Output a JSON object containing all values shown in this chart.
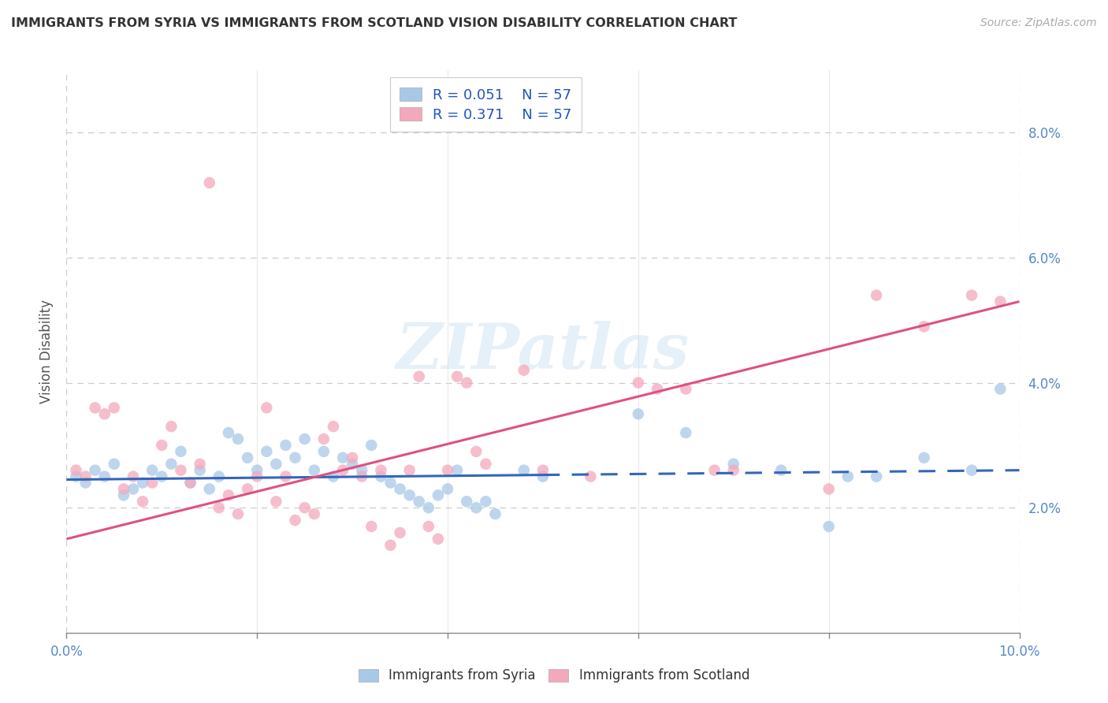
{
  "title": "IMMIGRANTS FROM SYRIA VS IMMIGRANTS FROM SCOTLAND VISION DISABILITY CORRELATION CHART",
  "source": "Source: ZipAtlas.com",
  "ylabel": "Vision Disability",
  "xlim": [
    0.0,
    0.1
  ],
  "ylim": [
    0.0,
    0.09
  ],
  "yticks": [
    0.02,
    0.04,
    0.06,
    0.08
  ],
  "xtick_labels_shown": [
    0.0,
    0.1
  ],
  "xtick_minor": [
    0.02,
    0.04,
    0.06,
    0.08
  ],
  "legend_labels": [
    "Immigrants from Syria",
    "Immigrants from Scotland"
  ],
  "r_syria": 0.051,
  "r_scotland": 0.371,
  "n_syria": 57,
  "n_scotland": 57,
  "color_syria": "#a8c8e8",
  "color_scotland": "#f4a8bc",
  "line_color_syria": "#3366bb",
  "line_color_scotland": "#e05080",
  "syria_line_solid_end": 0.05,
  "syria_intercept": 0.0245,
  "syria_slope": 0.015,
  "scotland_intercept": 0.015,
  "scotland_slope": 0.38,
  "syria_points": [
    [
      0.001,
      0.025
    ],
    [
      0.002,
      0.024
    ],
    [
      0.003,
      0.026
    ],
    [
      0.004,
      0.025
    ],
    [
      0.005,
      0.027
    ],
    [
      0.006,
      0.022
    ],
    [
      0.007,
      0.023
    ],
    [
      0.008,
      0.024
    ],
    [
      0.009,
      0.026
    ],
    [
      0.01,
      0.025
    ],
    [
      0.011,
      0.027
    ],
    [
      0.012,
      0.029
    ],
    [
      0.013,
      0.024
    ],
    [
      0.014,
      0.026
    ],
    [
      0.015,
      0.023
    ],
    [
      0.016,
      0.025
    ],
    [
      0.017,
      0.032
    ],
    [
      0.018,
      0.031
    ],
    [
      0.019,
      0.028
    ],
    [
      0.02,
      0.026
    ],
    [
      0.021,
      0.029
    ],
    [
      0.022,
      0.027
    ],
    [
      0.023,
      0.03
    ],
    [
      0.024,
      0.028
    ],
    [
      0.025,
      0.031
    ],
    [
      0.026,
      0.026
    ],
    [
      0.027,
      0.029
    ],
    [
      0.028,
      0.025
    ],
    [
      0.029,
      0.028
    ],
    [
      0.03,
      0.027
    ],
    [
      0.031,
      0.026
    ],
    [
      0.032,
      0.03
    ],
    [
      0.033,
      0.025
    ],
    [
      0.034,
      0.024
    ],
    [
      0.035,
      0.023
    ],
    [
      0.036,
      0.022
    ],
    [
      0.037,
      0.021
    ],
    [
      0.038,
      0.02
    ],
    [
      0.039,
      0.022
    ],
    [
      0.04,
      0.023
    ],
    [
      0.041,
      0.026
    ],
    [
      0.042,
      0.021
    ],
    [
      0.043,
      0.02
    ],
    [
      0.044,
      0.021
    ],
    [
      0.045,
      0.019
    ],
    [
      0.048,
      0.026
    ],
    [
      0.05,
      0.025
    ],
    [
      0.06,
      0.035
    ],
    [
      0.065,
      0.032
    ],
    [
      0.07,
      0.027
    ],
    [
      0.075,
      0.026
    ],
    [
      0.08,
      0.017
    ],
    [
      0.082,
      0.025
    ],
    [
      0.085,
      0.025
    ],
    [
      0.09,
      0.028
    ],
    [
      0.095,
      0.026
    ],
    [
      0.098,
      0.039
    ]
  ],
  "scotland_points": [
    [
      0.001,
      0.026
    ],
    [
      0.002,
      0.025
    ],
    [
      0.003,
      0.036
    ],
    [
      0.004,
      0.035
    ],
    [
      0.005,
      0.036
    ],
    [
      0.006,
      0.023
    ],
    [
      0.007,
      0.025
    ],
    [
      0.008,
      0.021
    ],
    [
      0.009,
      0.024
    ],
    [
      0.01,
      0.03
    ],
    [
      0.011,
      0.033
    ],
    [
      0.012,
      0.026
    ],
    [
      0.013,
      0.024
    ],
    [
      0.014,
      0.027
    ],
    [
      0.015,
      0.072
    ],
    [
      0.016,
      0.02
    ],
    [
      0.017,
      0.022
    ],
    [
      0.018,
      0.019
    ],
    [
      0.019,
      0.023
    ],
    [
      0.02,
      0.025
    ],
    [
      0.021,
      0.036
    ],
    [
      0.022,
      0.021
    ],
    [
      0.023,
      0.025
    ],
    [
      0.024,
      0.018
    ],
    [
      0.025,
      0.02
    ],
    [
      0.026,
      0.019
    ],
    [
      0.027,
      0.031
    ],
    [
      0.028,
      0.033
    ],
    [
      0.029,
      0.026
    ],
    [
      0.03,
      0.028
    ],
    [
      0.031,
      0.025
    ],
    [
      0.032,
      0.017
    ],
    [
      0.033,
      0.026
    ],
    [
      0.034,
      0.014
    ],
    [
      0.035,
      0.016
    ],
    [
      0.036,
      0.026
    ],
    [
      0.037,
      0.041
    ],
    [
      0.038,
      0.017
    ],
    [
      0.039,
      0.015
    ],
    [
      0.04,
      0.026
    ],
    [
      0.041,
      0.041
    ],
    [
      0.042,
      0.04
    ],
    [
      0.043,
      0.029
    ],
    [
      0.044,
      0.027
    ],
    [
      0.048,
      0.042
    ],
    [
      0.05,
      0.026
    ],
    [
      0.055,
      0.025
    ],
    [
      0.06,
      0.04
    ],
    [
      0.062,
      0.039
    ],
    [
      0.065,
      0.039
    ],
    [
      0.068,
      0.026
    ],
    [
      0.07,
      0.026
    ],
    [
      0.08,
      0.023
    ],
    [
      0.085,
      0.054
    ],
    [
      0.09,
      0.049
    ],
    [
      0.095,
      0.054
    ],
    [
      0.098,
      0.053
    ]
  ]
}
